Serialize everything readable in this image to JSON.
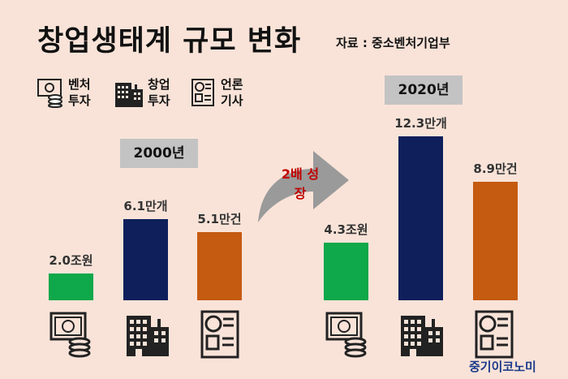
{
  "title": "창업생태계 규모 변화",
  "source": "자료 : 중소벤처기업부",
  "legend": [
    {
      "label": "벤처 투자",
      "icon": "money-icon"
    },
    {
      "label": "창업 투자",
      "icon": "building-icon"
    },
    {
      "label": "언론 기사",
      "icon": "news-icon"
    }
  ],
  "growth_label": "2배 성장",
  "brand": "중기이코노미",
  "colors": {
    "venture": "#0fa84a",
    "startup": "#0e1f5b",
    "news": "#c55a11",
    "background": "#f9e3d8"
  },
  "chart_data": {
    "type": "bar",
    "title": "창업생태계 규모 변화",
    "categories": [
      "벤처 투자",
      "창업 투자",
      "언론 기사"
    ],
    "groups": [
      {
        "name": "2000년",
        "values": [
          2.0,
          6.1,
          5.1
        ],
        "labels": [
          "2.0조원",
          "6.1만개",
          "5.1만건"
        ]
      },
      {
        "name": "2020년",
        "values": [
          4.3,
          12.3,
          8.9
        ],
        "labels": [
          "4.3조원",
          "12.3만개",
          "8.9만건"
        ]
      }
    ],
    "units": [
      "조원",
      "만개",
      "만건"
    ]
  }
}
